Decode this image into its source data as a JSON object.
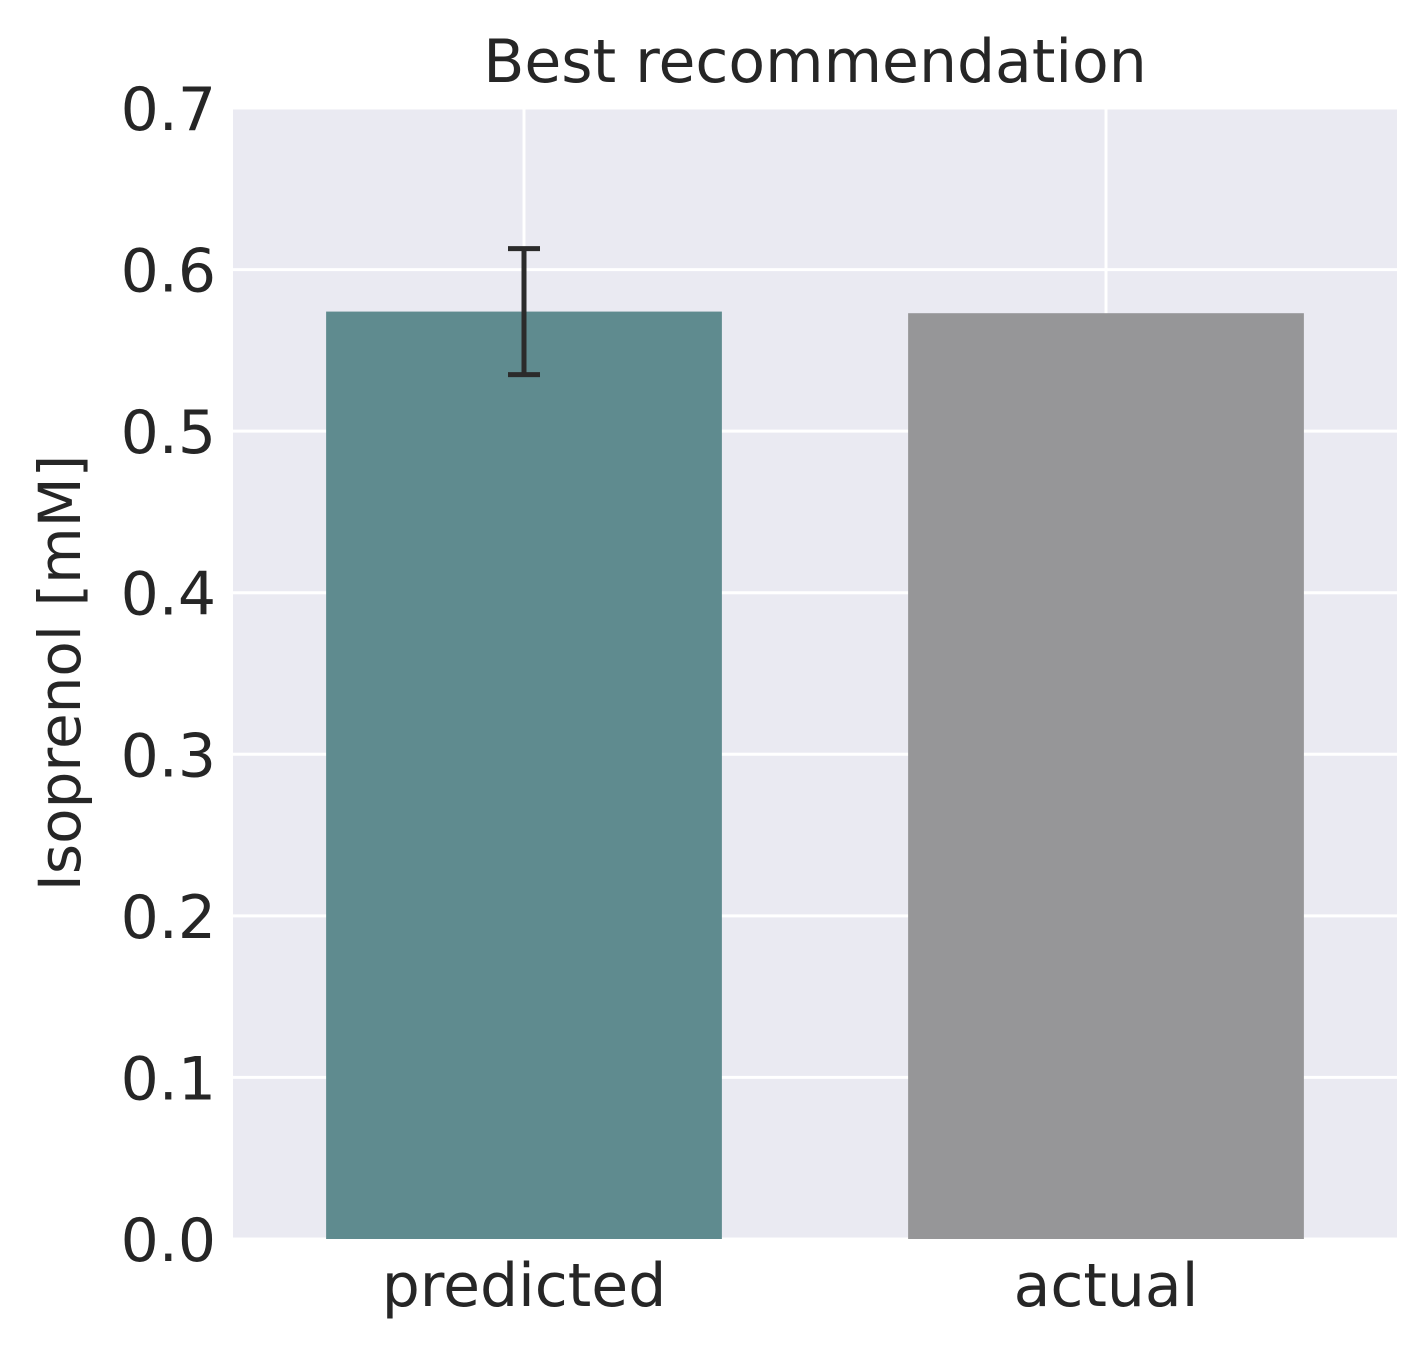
{
  "chart_data": {
    "type": "bar",
    "title": "Best recommendation",
    "xlabel": "",
    "ylabel": "Isoprenol [mM]",
    "categories": [
      "predicted",
      "actual"
    ],
    "values": [
      0.574,
      0.573
    ],
    "error": [
      0.039,
      null
    ],
    "ylim": [
      0,
      0.7
    ],
    "yticks": [
      "0.0",
      "0.1",
      "0.2",
      "0.3",
      "0.4",
      "0.5",
      "0.6",
      "0.7"
    ],
    "grid": true,
    "colors": {
      "background": "#eaeaf2",
      "bars": [
        "#5f8b8f",
        "#969698"
      ],
      "errorbar": "#2b2b2b"
    }
  }
}
